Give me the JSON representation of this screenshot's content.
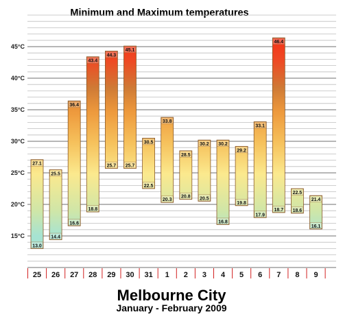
{
  "chart_data": {
    "type": "bar",
    "subtype": "floating-range",
    "title": "Minimum and Maximum temperatures",
    "location": "Melbourne City",
    "period": "January - February 2009",
    "y_tick_labels": [
      "15°C",
      "20°C",
      "25°C",
      "30°C",
      "35°C",
      "40°C",
      "45°C"
    ],
    "y_ticks": [
      15,
      20,
      25,
      30,
      35,
      40,
      45
    ],
    "ylim": [
      10,
      50
    ],
    "grid": true,
    "categories": [
      "25",
      "26",
      "27",
      "28",
      "29",
      "30",
      "31",
      "1",
      "2",
      "3",
      "4",
      "5",
      "6",
      "7",
      "8",
      "9"
    ],
    "series": [
      {
        "name": "Maximum",
        "values": [
          27.1,
          25.5,
          36.4,
          43.4,
          44.3,
          45.1,
          30.5,
          33.8,
          28.5,
          30.2,
          30.2,
          29.2,
          33.1,
          46.4,
          22.5,
          21.4
        ]
      },
      {
        "name": "Minimum",
        "values": [
          13.0,
          14.4,
          16.6,
          18.8,
          25.7,
          25.7,
          22.5,
          20.3,
          20.8,
          20.5,
          16.8,
          19.8,
          17.9,
          18.7,
          18.6,
          16.1
        ]
      }
    ],
    "max_labels": [
      "27.1",
      "25.5",
      "36.4",
      "43.4",
      "44.3",
      "45.1",
      "30.5",
      "33.8",
      "28.5",
      "30.2",
      "30.2",
      "29.2",
      "33.1",
      "46.4",
      "22.5",
      "21.4"
    ],
    "min_labels": [
      "13.0",
      "14.4",
      "16.6",
      "18.8",
      "25.7",
      "25.7",
      "22.5",
      "20.3",
      "20.8",
      "20.5",
      "16.8",
      "19.8",
      "17.9",
      "18.7",
      "18.6",
      "16.1"
    ]
  }
}
